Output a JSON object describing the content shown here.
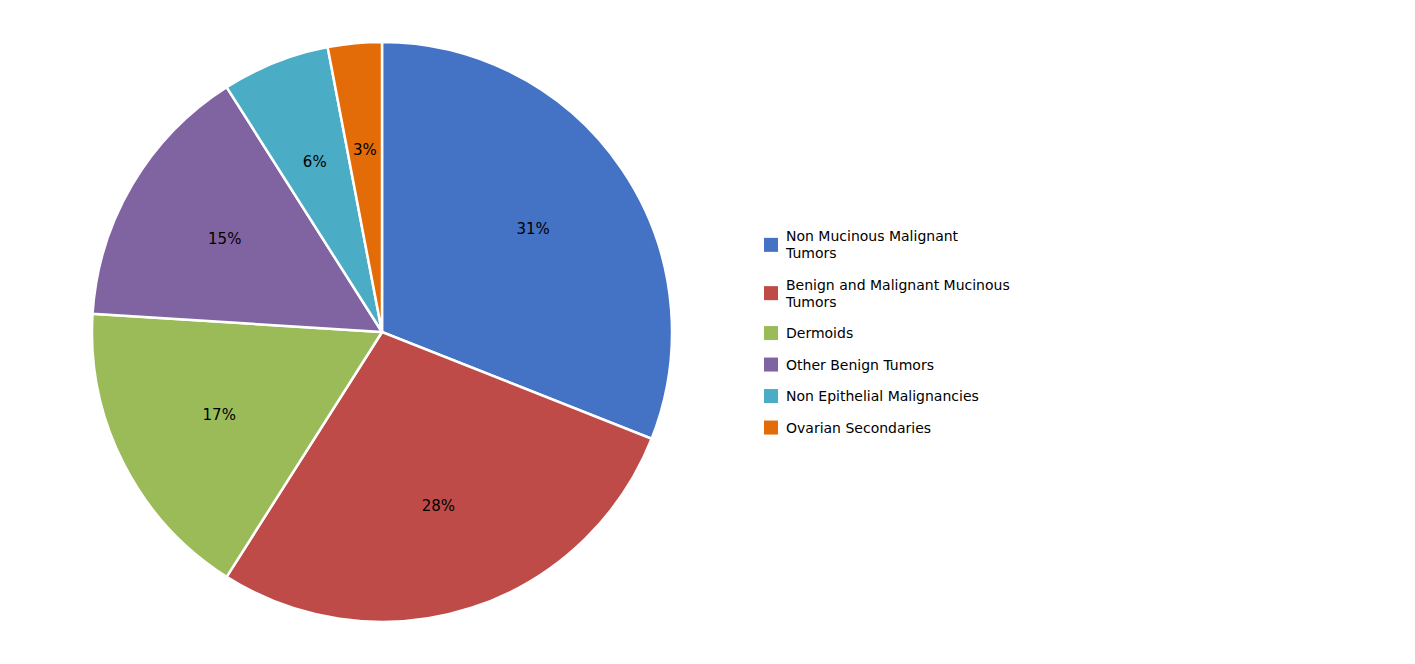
{
  "chart_data": {
    "type": "pie",
    "categories": [
      "Non Mucinous Malignant\nTumors",
      "Benign and Malignant Mucinous\nTumors",
      "Dermoids",
      "Other Benign Tumors",
      "Non Epithelial Malignancies",
      "Ovarian Secondaries"
    ],
    "values": [
      31,
      28,
      17,
      15,
      6,
      3
    ],
    "value_labels": [
      "31%",
      "28%",
      "17%",
      "15%",
      "6%",
      "3%"
    ],
    "colors": [
      "#4472C4",
      "#BE4B48",
      "#9BBB59",
      "#8064A2",
      "#4BACC6",
      "#E36C09"
    ],
    "data_labels": true,
    "legend": "right"
  }
}
